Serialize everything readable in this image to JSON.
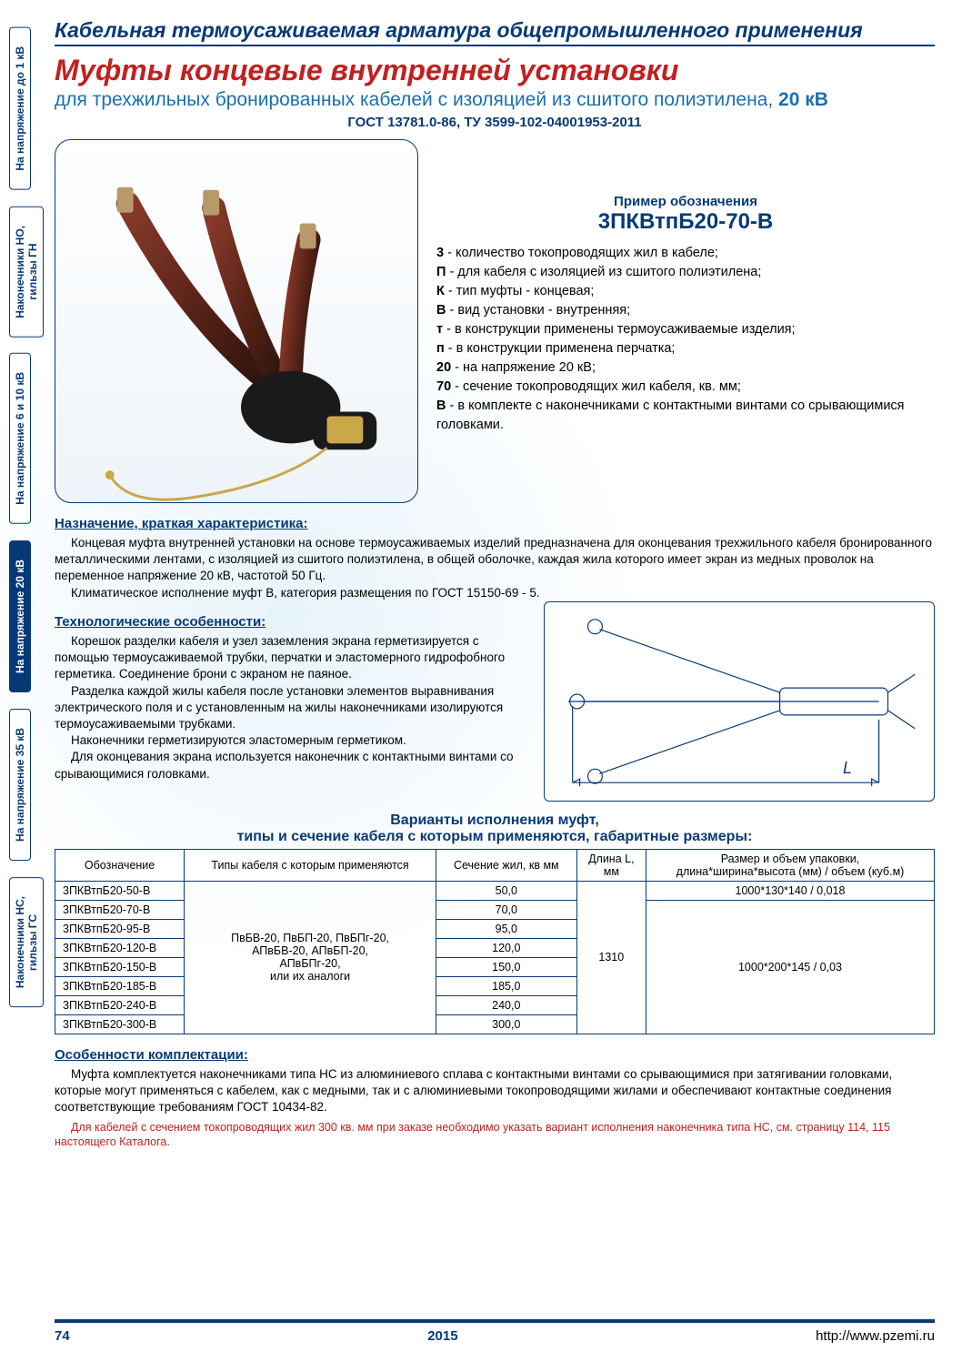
{
  "tabs": [
    {
      "label": "На напряжение до 1 кВ",
      "active": false
    },
    {
      "label": "Наконечники НО,\nгильзы ГН",
      "active": false
    },
    {
      "label": "На напряжение 6 и 10 кВ",
      "active": false
    },
    {
      "label": "На напряжение 20 кВ",
      "active": true
    },
    {
      "label": "На напряжение 35 кВ",
      "active": false
    },
    {
      "label": "Наконечники НС,\nгильзы ГС",
      "active": false
    }
  ],
  "header": {
    "category": "Кабельная термоусаживаемая арматура общепромышленного применения",
    "title": "Муфты концевые внутренней установки",
    "subtitle_pre": "для трехжильных бронированных кабелей с изоляцией из сшитого полиэтилена, ",
    "subtitle_bold": "20 кВ",
    "gost": "ГОСТ 13781.0-86, ТУ 3599-102-04001953-2011"
  },
  "legend": {
    "title1": "Пример обозначения",
    "title2": "3ПКВтпБ20-70-В",
    "items": [
      {
        "k": "3",
        "t": " - количество токопроводящих жил в кабеле;"
      },
      {
        "k": "П",
        "t": " - для кабеля с изоляцией из сшитого полиэтилена;"
      },
      {
        "k": "К",
        "t": " - тип муфты - концевая;"
      },
      {
        "k": "В",
        "t": " - вид установки - внутренняя;"
      },
      {
        "k": "т",
        "t": " - в конструкции применены термоусаживаемые изделия;"
      },
      {
        "k": "п",
        "t": " - в конструкции применена перчатка;"
      },
      {
        "k": "20",
        "t": " - на напряжение 20 кВ;"
      },
      {
        "k": "70",
        "t": " - сечение токопроводящих жил кабеля, кв. мм;"
      },
      {
        "k": "В",
        "t": " - в комплекте с наконечниками с контактными винтами со срывающимися головками."
      }
    ]
  },
  "purpose": {
    "h": "Назначение, краткая характеристика:",
    "p1": "Концевая муфта внутренней установки на основе термоусаживаемых изделий предназначена для оконцевания трехжильного кабеля бронированного металлическими лентами, с изоляцией из сшитого полиэтилена, в общей оболочке, каждая жила которого имеет экран из медных проволок на переменное напряжение 20 кВ, частотой 50 Гц.",
    "p2": "Климатическое исполнение муфт В, категория размещения по ГОСТ 15150-69 - 5."
  },
  "tech": {
    "h": "Технологические особенности:",
    "p1": "Корешок разделки кабеля и узел заземления экрана герметизируется с помощью термоусаживаемой трубки, перчатки и эластомерного гидрофобного герметика. Соединение брони с экраном не паяное.",
    "p2": "Разделка каждой жилы кабеля после установки элементов выравнивания электрического поля и с установленным на жилы наконечниками изолируются термоусаживаемыми трубками.",
    "p3": "Наконечники герметизируются эластомерным герметиком.",
    "p4": "Для оконцевания экрана используется наконечник с контактными винтами со срывающимися головками.",
    "L": "L"
  },
  "table": {
    "h1": "Варианты исполнения муфт,",
    "h2": "типы и сечение кабеля с которым применяются, габаритные размеры:",
    "cols": [
      "Обозначение",
      "Типы кабеля с которым применяются",
      "Сечение жил, кв мм",
      "Длина L,\nмм",
      "Размер и объем упаковки,\nдлина*ширина*высота (мм) / объем (куб.м)"
    ],
    "cable_types": "ПвБВ-20, ПвБП-20, ПвБПг-20,\nАПвБВ-20, АПвБП-20,\nАПвБПг-20,\nили их аналоги",
    "length": "1310",
    "pack_first": "1000*130*140 / 0,018",
    "pack_rest": "1000*200*145 / 0,03",
    "rows": [
      {
        "d": "3ПКВтпБ20-50-В",
        "s": "50,0"
      },
      {
        "d": "3ПКВтпБ20-70-В",
        "s": "70,0"
      },
      {
        "d": "3ПКВтпБ20-95-В",
        "s": "95,0"
      },
      {
        "d": "3ПКВтпБ20-120-В",
        "s": "120,0"
      },
      {
        "d": "3ПКВтпБ20-150-В",
        "s": "150,0"
      },
      {
        "d": "3ПКВтпБ20-185-В",
        "s": "185,0"
      },
      {
        "d": "3ПКВтпБ20-240-В",
        "s": "240,0"
      },
      {
        "d": "3ПКВтпБ20-300-В",
        "s": "300,0"
      }
    ]
  },
  "pack": {
    "h": "Особенности комплектации:",
    "p1": "Муфта комплектуется наконечниками типа НС из алюминиевого сплава с контактными винтами со срывающимися при затягивании головками, которые могут применяться с кабелем, как с медными, так и с алюминиевыми токопроводящими жилами и обеспечивают контактные соединения соответствующие требованиям ГОСТ 10434-82.",
    "p2": "Для кабелей с сечением токопроводящих жил 300 кв. мм при заказе необходимо указать вариант исполнения наконечника типа НС, см. страницу 114, 115 настоящего Каталога."
  },
  "footer": {
    "page": "74",
    "year": "2015",
    "url": "http://www.pzemi.ru"
  },
  "colors": {
    "blue": "#063a77",
    "red": "#c22020",
    "lightblue": "#1a6fb0"
  }
}
